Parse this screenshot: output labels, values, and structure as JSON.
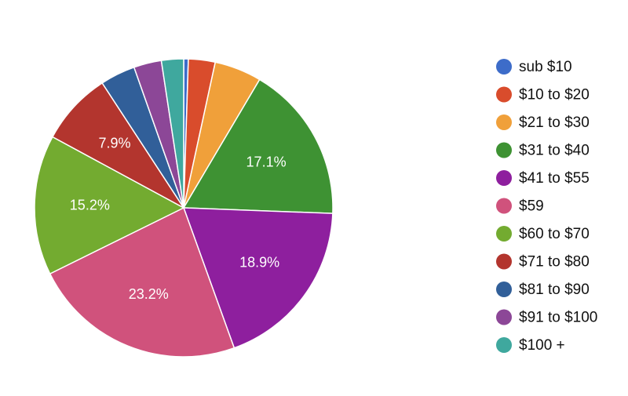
{
  "chart_data": {
    "type": "pie",
    "categories": [
      "sub $10",
      "$10 to $20",
      "$21 to $30",
      "$31 to $40",
      "$41 to $55",
      "$59",
      "$60 to $70",
      "$71 to $80",
      "$81 to $90",
      "$91 to $100",
      "$100 +"
    ],
    "values": [
      0.5,
      2.9,
      5.1,
      17.1,
      18.9,
      23.2,
      15.2,
      7.9,
      3.8,
      3.0,
      2.4
    ],
    "value_labels": [
      null,
      null,
      null,
      "17.1%",
      "18.9%",
      "23.2%",
      "15.2%",
      "7.9%",
      null,
      null,
      null
    ],
    "colors": [
      "#3d6cc9",
      "#d94c2c",
      "#f0a03a",
      "#3e9233",
      "#8e1f9e",
      "#d0527c",
      "#73ab30",
      "#b3352e",
      "#315f99",
      "#8c4797",
      "#3fa89e"
    ],
    "legend": "right"
  }
}
